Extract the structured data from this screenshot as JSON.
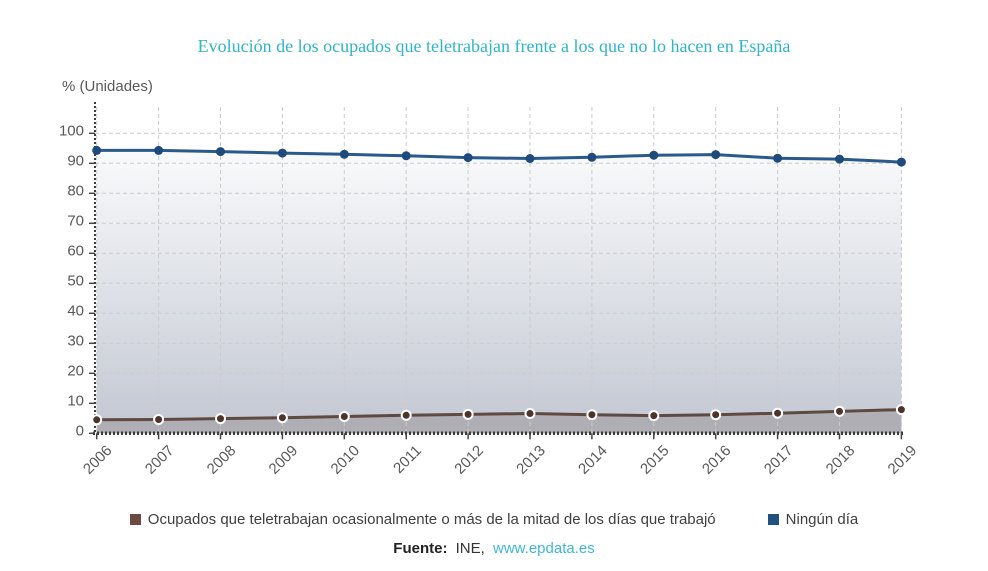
{
  "title": "Evolución de los ocupados que teletrabajan frente a los que no lo hacen en España",
  "axis_unit_label": "% (Unidades)",
  "legend": {
    "items": [
      {
        "label": "Ocupados que teletrabajan ocasionalmente o más de la mitad de los días que trabajó",
        "color": "#6b4a41"
      },
      {
        "label": "Ningún día",
        "color": "#20517e"
      }
    ]
  },
  "source": {
    "prefix": "Fuente:",
    "agency": "INE,",
    "link": "www.epdata.es",
    "link_color": "#3eb6dc"
  },
  "colors": {
    "title": "#2fb4c9",
    "axis_labels": "#58595b",
    "gridline": "#cbcbcb",
    "axis_line": "#3c3c3c"
  },
  "chart_data": {
    "type": "line",
    "title": "Evolución de los ocupados que teletrabajan frente a los que no lo hacen en España",
    "ylabel": "% (Unidades)",
    "x": [
      2006,
      2007,
      2008,
      2009,
      2010,
      2011,
      2012,
      2013,
      2014,
      2015,
      2016,
      2017,
      2018,
      2019
    ],
    "series": [
      {
        "name": "Ocupados que teletrabajan ocasionalmente o más de la mitad de los días que trabajó",
        "values": [
          4.5,
          4.6,
          4.9,
          5.2,
          5.6,
          6.0,
          6.3,
          6.6,
          6.2,
          5.9,
          6.2,
          6.7,
          7.3,
          7.9
        ],
        "line_color": "#5e4a41",
        "marker_color": "#4e332a",
        "marker_ring": "#ffffff",
        "area_fill": "rgba(94,70,60,0.20)"
      },
      {
        "name": "Ningún día",
        "values": [
          94.3,
          94.3,
          93.9,
          93.4,
          93.0,
          92.5,
          91.9,
          91.6,
          92.0,
          92.7,
          92.9,
          91.7,
          91.4,
          90.4
        ],
        "line_color": "#2a5a8c",
        "marker_color": "#1e4b7b",
        "marker_ring": "",
        "area_top": "#fbfcfd",
        "area_bottom": "#c2c7d2"
      }
    ],
    "ylim": [
      0,
      100
    ],
    "ytick_step": 10,
    "grid": "dashed",
    "x_labels_rotation": -45,
    "legend_position": "bottom"
  }
}
